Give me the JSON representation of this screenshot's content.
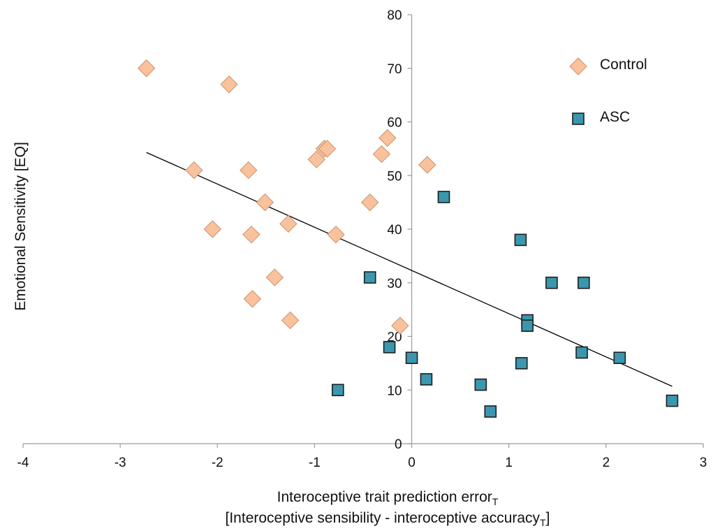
{
  "chart_data": {
    "type": "scatter",
    "xlabel_main": "Interoceptive trait prediction error",
    "xlabel_main_sub": "T",
    "xlabel_second": "[Interoceptive sensibility - interoceptive accuracy",
    "xlabel_second_sub": "T",
    "xlabel_second_end": "]",
    "ylabel": "Emotional Sensitivity [EQ]",
    "xlim": [
      -4,
      3
    ],
    "ylim": [
      0,
      80
    ],
    "x_ticks": [
      -4,
      -3,
      -2,
      -1,
      0,
      1,
      2,
      3
    ],
    "y_ticks": [
      0,
      10,
      20,
      30,
      40,
      50,
      60,
      70,
      80
    ],
    "grid": false,
    "legend_position": "top-right",
    "series": [
      {
        "name": "Control",
        "marker": "diamond",
        "color": "#f9c29c",
        "points": [
          {
            "x": -2.73,
            "y": 70
          },
          {
            "x": -1.88,
            "y": 67
          },
          {
            "x": -2.24,
            "y": 51
          },
          {
            "x": -2.05,
            "y": 40
          },
          {
            "x": -1.68,
            "y": 51
          },
          {
            "x": -1.51,
            "y": 45
          },
          {
            "x": -1.65,
            "y": 39
          },
          {
            "x": -1.41,
            "y": 31
          },
          {
            "x": -1.27,
            "y": 41
          },
          {
            "x": -1.64,
            "y": 27
          },
          {
            "x": -1.25,
            "y": 23
          },
          {
            "x": -0.98,
            "y": 53
          },
          {
            "x": -0.9,
            "y": 55
          },
          {
            "x": -0.87,
            "y": 55
          },
          {
            "x": -0.78,
            "y": 39
          },
          {
            "x": -0.43,
            "y": 45
          },
          {
            "x": -0.31,
            "y": 54
          },
          {
            "x": -0.25,
            "y": 57
          },
          {
            "x": -0.12,
            "y": 22
          },
          {
            "x": 0.16,
            "y": 52
          }
        ]
      },
      {
        "name": "ASC",
        "marker": "square",
        "color": "#3a97ae",
        "points": [
          {
            "x": -0.76,
            "y": 10
          },
          {
            "x": -0.43,
            "y": 31
          },
          {
            "x": -0.23,
            "y": 18
          },
          {
            "x": 0.0,
            "y": 16
          },
          {
            "x": 0.15,
            "y": 12
          },
          {
            "x": 0.33,
            "y": 46
          },
          {
            "x": 0.71,
            "y": 11
          },
          {
            "x": 0.81,
            "y": 6
          },
          {
            "x": 1.12,
            "y": 38
          },
          {
            "x": 1.13,
            "y": 15
          },
          {
            "x": 1.19,
            "y": 23
          },
          {
            "x": 1.19,
            "y": 22
          },
          {
            "x": 1.44,
            "y": 30
          },
          {
            "x": 1.75,
            "y": 17
          },
          {
            "x": 1.77,
            "y": 30
          },
          {
            "x": 2.14,
            "y": 16
          },
          {
            "x": 2.68,
            "y": 8
          }
        ]
      }
    ],
    "trendline": {
      "x": [
        -2.73,
        2.68
      ],
      "y": [
        54.3,
        10.7
      ]
    }
  }
}
